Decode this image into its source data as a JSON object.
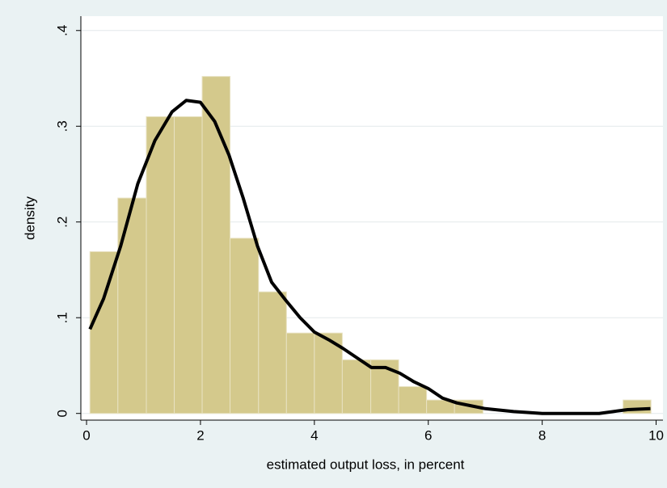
{
  "chart_data": {
    "type": "histogram",
    "bins": [
      0.06,
      0.55,
      1.05,
      1.54,
      2.03,
      2.52,
      3.02,
      3.51,
      4.0,
      4.49,
      4.99,
      5.48,
      5.97,
      6.46,
      6.96,
      7.45,
      7.94,
      8.43,
      8.93,
      9.42,
      9.91
    ],
    "values": [
      0.169,
      0.225,
      0.31,
      0.31,
      0.352,
      0.183,
      0.127,
      0.084,
      0.084,
      0.056,
      0.056,
      0.028,
      0.014,
      0.014,
      0,
      0,
      0,
      0,
      0,
      0.014
    ],
    "color": "#d4c98c",
    "density": {
      "color": "#000000",
      "x": [
        0.06,
        0.3,
        0.6,
        0.9,
        1.2,
        1.5,
        1.75,
        2.0,
        2.25,
        2.5,
        2.75,
        3.0,
        3.25,
        3.5,
        3.75,
        4.0,
        4.25,
        4.5,
        4.75,
        5.0,
        5.25,
        5.5,
        5.75,
        6.0,
        6.25,
        6.5,
        6.75,
        7.0,
        7.5,
        8.0,
        8.5,
        9.0,
        9.25,
        9.5,
        9.9
      ],
      "values": [
        0.088,
        0.12,
        0.175,
        0.24,
        0.285,
        0.315,
        0.327,
        0.325,
        0.305,
        0.27,
        0.225,
        0.175,
        0.137,
        0.118,
        0.1,
        0.085,
        0.077,
        0.068,
        0.058,
        0.048,
        0.048,
        0.042,
        0.033,
        0.026,
        0.016,
        0.011,
        0.008,
        0.005,
        0.002,
        0,
        0,
        0,
        0.002,
        0.004,
        0.005
      ]
    },
    "x_label": "estimated output loss, in percent",
    "y_label": "density",
    "xlim": [
      -0.1,
      10.12
    ],
    "ylim": [
      -0.007,
      0.415
    ],
    "xticks": [
      0,
      2,
      4,
      6,
      8,
      10
    ],
    "yticks": [
      0,
      {
        "value": 0.1,
        "label": ".1"
      },
      {
        "value": 0.2,
        "label": ".2"
      },
      {
        "value": 0.3,
        "label": ".3"
      },
      {
        "value": 0.4,
        "label": ".4"
      }
    ],
    "grid": true
  }
}
